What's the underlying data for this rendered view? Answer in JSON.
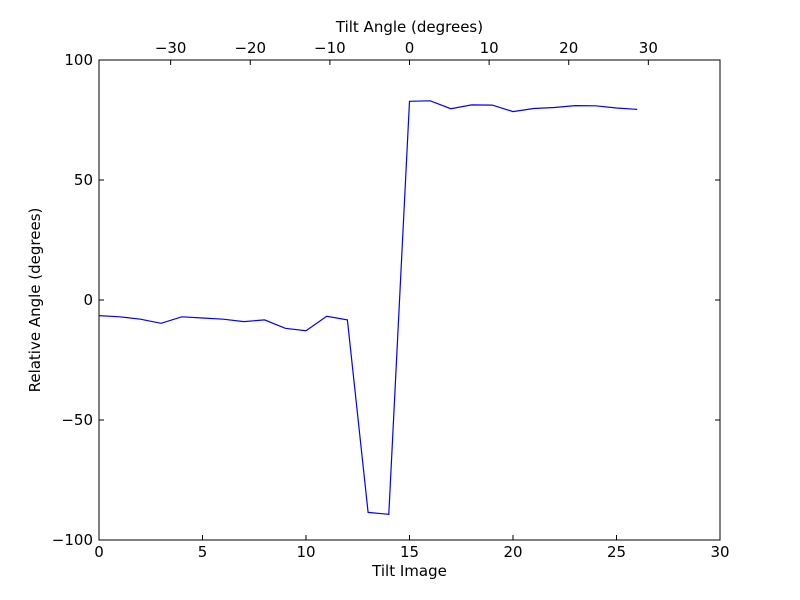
{
  "chart_data": {
    "type": "line",
    "xlabel": "Tilt Image",
    "ylabel": "Relative Angle (degrees)",
    "top_xlabel": "Tilt Angle (degrees)",
    "xlim": [
      0,
      30
    ],
    "ylim": [
      -100,
      100
    ],
    "top_xlim": [
      -39,
      39
    ],
    "x_ticks": [
      0,
      5,
      10,
      15,
      20,
      25,
      30
    ],
    "y_ticks": [
      -100,
      -50,
      0,
      50,
      100
    ],
    "top_x_ticks": [
      -30,
      -20,
      -10,
      0,
      10,
      20,
      30
    ],
    "x_tick_labels": [
      "0",
      "5",
      "10",
      "15",
      "20",
      "25",
      "30"
    ],
    "y_tick_labels": [
      "−100",
      "−50",
      "0",
      "50",
      "100"
    ],
    "top_x_tick_labels": [
      "−30",
      "−20",
      "−10",
      "0",
      "10",
      "20",
      "30"
    ],
    "grid": false,
    "line_color": "#0000ff",
    "series": [
      {
        "x": [
          0,
          1,
          2,
          3,
          4,
          5,
          6,
          7,
          8,
          9,
          10,
          11,
          12,
          13,
          14,
          15,
          16,
          17,
          18,
          19,
          20,
          21,
          22,
          23,
          24,
          25,
          26
        ],
        "values": [
          -6.5,
          -7,
          -8,
          -9.7,
          -7,
          -7.5,
          -8,
          -9,
          -8.3,
          -11.8,
          -12.8,
          -6.8,
          -8.3,
          -88.5,
          -89.3,
          82.8,
          83,
          79.7,
          81.3,
          81.2,
          78.5,
          79.8,
          80.2,
          81,
          80.9,
          80,
          79.4
        ]
      }
    ]
  }
}
